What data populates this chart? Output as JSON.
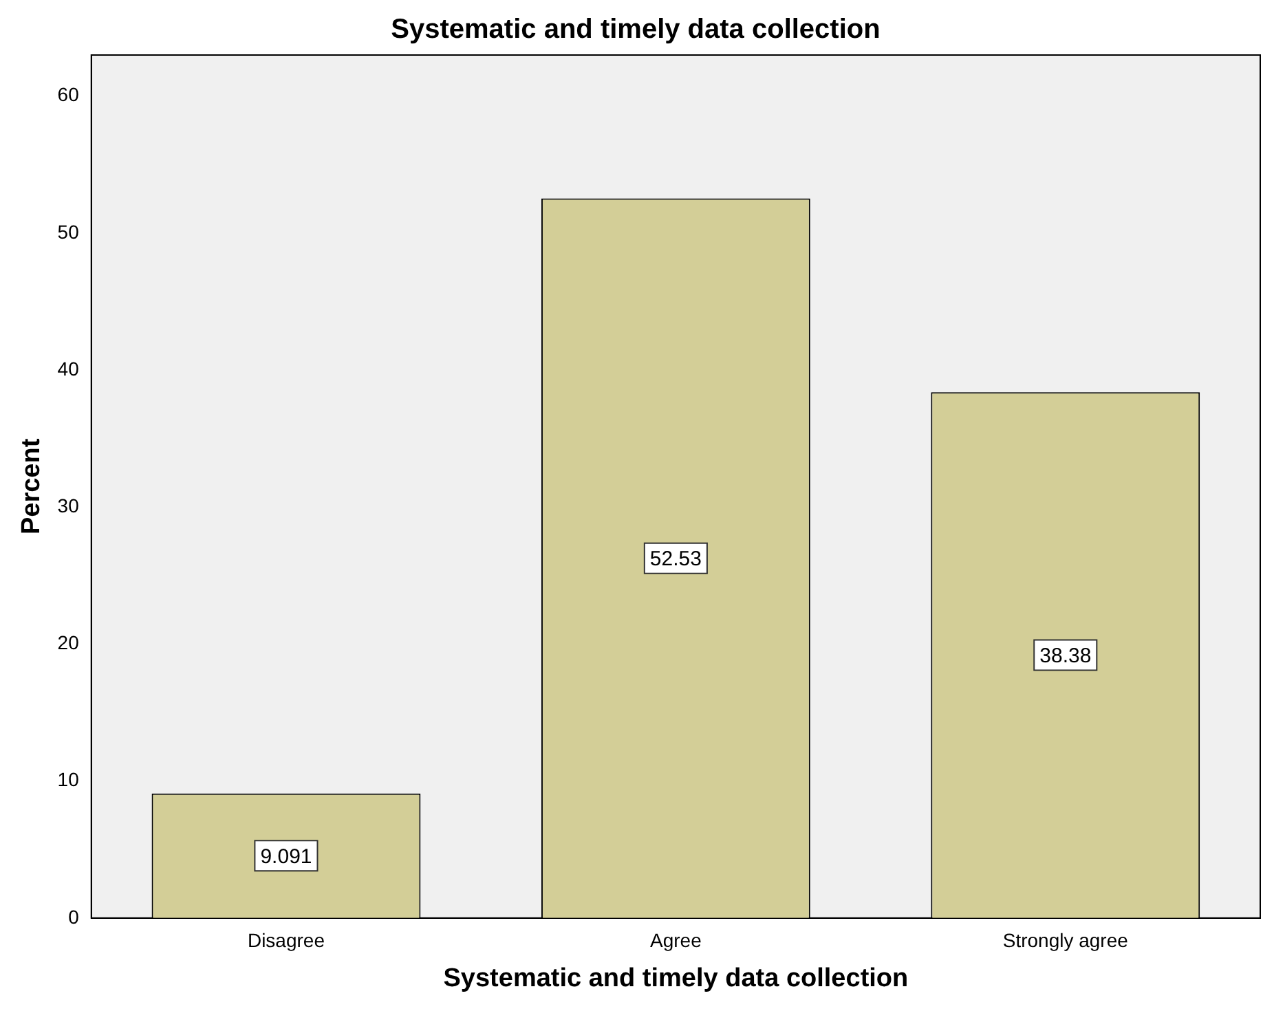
{
  "chart_data": {
    "type": "bar",
    "title": "Systematic and timely data collection",
    "xlabel": "Systematic and timely data collection",
    "ylabel": "Percent",
    "categories": [
      "Disagree",
      "Agree",
      "Strongly agree"
    ],
    "values": [
      9.091,
      52.53,
      38.38
    ],
    "color": "#d3ce97",
    "ylim": [
      0,
      63
    ],
    "yticks": [
      0,
      10,
      20,
      30,
      40,
      50,
      60
    ],
    "grid": false,
    "legend": false,
    "data_labels": true
  }
}
